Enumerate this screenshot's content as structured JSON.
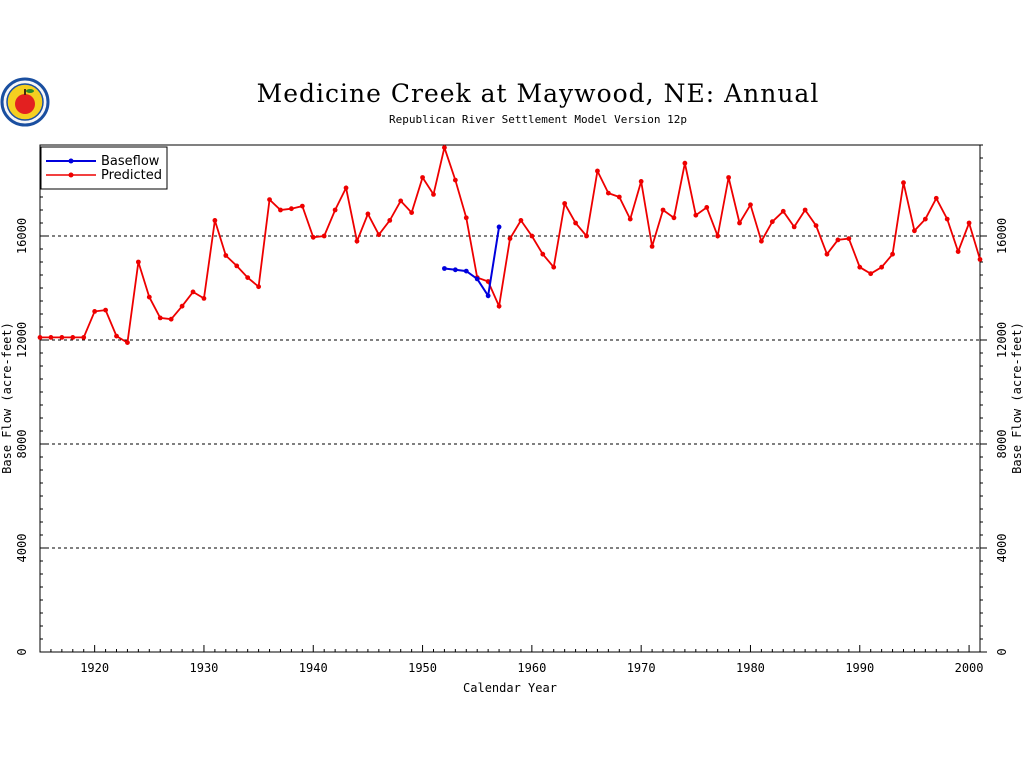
{
  "colors": {
    "baseflow": "#0000dd",
    "predicted": "#ee0000",
    "logo_ring": "#1a4fa0",
    "logo_apple": "#e32020",
    "logo_field": "#f5d020"
  },
  "logo": {
    "icon": "apple-seal-logo"
  },
  "chart_data": {
    "type": "line",
    "title": "Medicine Creek at Maywood, NE: Annual",
    "subtitle": "Republican River Settlement Model Version 12p",
    "xlabel": "Calendar Year",
    "ylabel": "Base Flow (acre-feet)",
    "xlim": [
      1915,
      2001
    ],
    "ylim": [
      0,
      19500
    ],
    "xticks": [
      1920,
      1930,
      1940,
      1950,
      1960,
      1970,
      1980,
      1990,
      2000
    ],
    "yticks": [
      0,
      4000,
      8000,
      12000,
      16000
    ],
    "grid_y": [
      4000,
      8000,
      12000,
      16000
    ],
    "grid_style": "dashed",
    "legend_position": "top-left",
    "series": [
      {
        "name": "Baseflow",
        "color": "#0000dd",
        "x": [
          1952,
          1953,
          1954,
          1955,
          1956,
          1957
        ],
        "values": [
          14750,
          14700,
          14650,
          14350,
          13700,
          16350
        ]
      },
      {
        "name": "Predicted",
        "color": "#ee0000",
        "x": [
          1915,
          1916,
          1917,
          1918,
          1919,
          1920,
          1921,
          1922,
          1923,
          1924,
          1925,
          1926,
          1927,
          1928,
          1929,
          1930,
          1931,
          1932,
          1933,
          1934,
          1935,
          1936,
          1937,
          1938,
          1939,
          1940,
          1941,
          1942,
          1943,
          1944,
          1945,
          1946,
          1947,
          1948,
          1949,
          1950,
          1951,
          1952,
          1953,
          1954,
          1955,
          1956,
          1957,
          1958,
          1959,
          1960,
          1961,
          1962,
          1963,
          1964,
          1965,
          1966,
          1967,
          1968,
          1969,
          1970,
          1971,
          1972,
          1973,
          1974,
          1975,
          1976,
          1977,
          1978,
          1979,
          1980,
          1981,
          1982,
          1983,
          1984,
          1985,
          1986,
          1987,
          1988,
          1989,
          1990,
          1991,
          1992,
          1993,
          1994,
          1995,
          1996,
          1997,
          1998,
          1999,
          2000,
          2001
        ],
        "values": [
          12100,
          12100,
          12100,
          12100,
          12100,
          13100,
          13150,
          12150,
          11900,
          15000,
          13650,
          12850,
          12800,
          13300,
          13850,
          13600,
          16600,
          15250,
          14850,
          14400,
          14050,
          17400,
          17000,
          17050,
          17150,
          15950,
          16000,
          17000,
          17850,
          15800,
          16850,
          16050,
          16600,
          17350,
          16900,
          18250,
          17600,
          19400,
          18150,
          16700,
          14400,
          14250,
          13300,
          15900,
          16600,
          16000,
          15300,
          14800,
          17250,
          16500,
          16000,
          18500,
          17650,
          17500,
          16650,
          18100,
          15600,
          17000,
          16700,
          18800,
          16800,
          17100,
          16000,
          18250,
          16500,
          17200,
          15800,
          16550,
          16950,
          16350,
          17000,
          16400,
          15300,
          15850,
          15900,
          14800,
          14550,
          14800,
          15300,
          18050,
          16200,
          16650,
          17450,
          16650,
          15400,
          16500,
          15100
        ]
      }
    ]
  }
}
